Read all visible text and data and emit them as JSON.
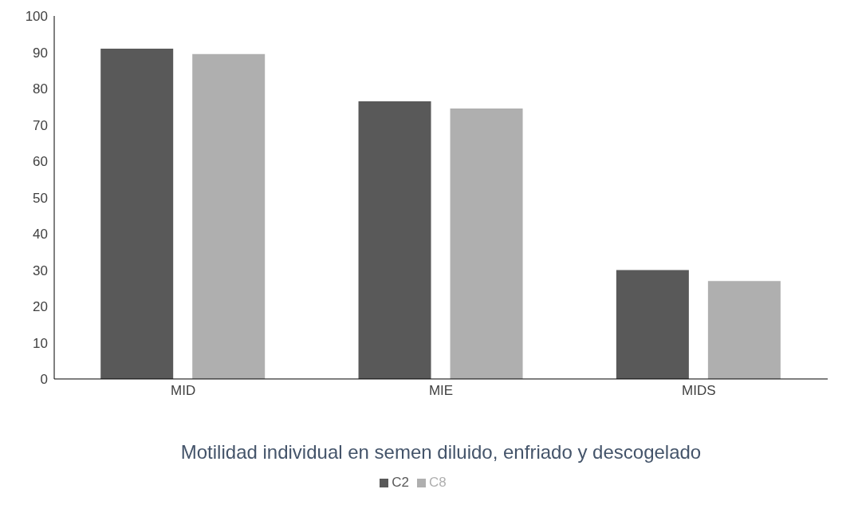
{
  "chart_data": {
    "type": "bar",
    "xlabel": "Motilidad individual en semen diluido, enfriado y descogelado",
    "categories": [
      "MID",
      "MIE",
      "MIDS"
    ],
    "series": [
      {
        "name": "C2",
        "color": "#595959",
        "values": [
          91,
          76.5,
          30
        ]
      },
      {
        "name": "C8",
        "color": "#afafaf",
        "values": [
          89.5,
          74.5,
          27
        ]
      }
    ],
    "ylim": [
      0,
      100
    ],
    "yticks": [
      0,
      10,
      20,
      30,
      40,
      50,
      60,
      70,
      80,
      90,
      100
    ],
    "grid": false,
    "legend": "bottom"
  }
}
